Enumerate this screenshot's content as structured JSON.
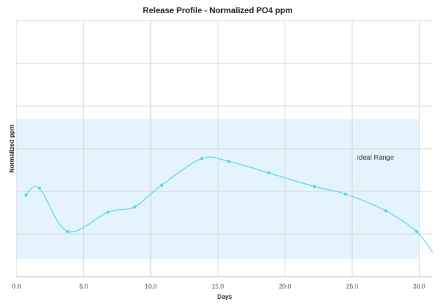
{
  "chart_data": {
    "type": "line",
    "title": "Release Profile - Normalized PO4 ppm",
    "xlabel": "Days",
    "ylabel": "Normalized  ppm",
    "xlim": [
      0,
      31
    ],
    "x_ticks": [
      0,
      5,
      10,
      15,
      20,
      25,
      30
    ],
    "x_tick_labels": [
      "0.0",
      "5.0",
      "10.0",
      "15.0",
      "20.0",
      "25.0",
      "30.0"
    ],
    "y_tick_labels_shown": false,
    "grid": true,
    "legend": "none",
    "series": [
      {
        "x": [
          0.7,
          1.7,
          3.8,
          6.8,
          8.8,
          10.8,
          13.8,
          15.8,
          18.8,
          22.2,
          24.5,
          27.5,
          29.8
        ],
        "y": [
          0.415,
          0.45,
          0.23,
          0.328,
          0.355,
          0.465,
          0.6,
          0.586,
          0.527,
          0.458,
          0.42,
          0.335,
          0.23
        ],
        "color": "#4fd2ec"
      }
    ],
    "curve_end": {
      "x": 31,
      "y": 0.125
    },
    "ylim": [
      0,
      1.3
    ],
    "ideal_range": {
      "label": "Ideal Range",
      "x": [
        0,
        30
      ],
      "y": [
        0.09,
        0.8
      ],
      "color": "#e5f3fd"
    },
    "gridline_color": "#d4d4d4"
  }
}
